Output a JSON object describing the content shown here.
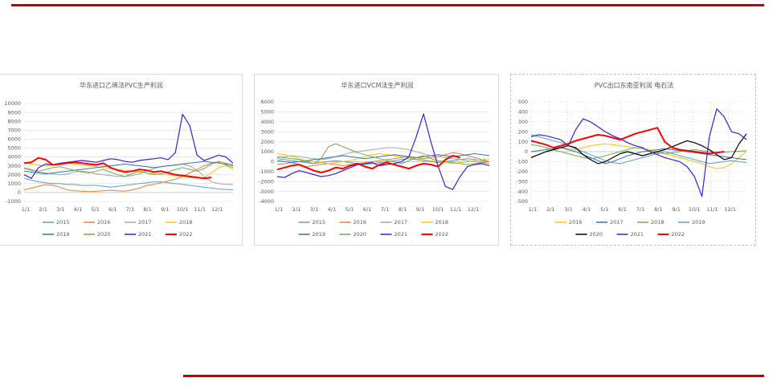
{
  "chart_data": [
    {
      "type": "line",
      "title": "华东进口乙烯法PVC生产利润",
      "xlabel": "",
      "ylabel": "",
      "x_ticks": [
        "1/1",
        "2/1",
        "3/1",
        "4/1",
        "5/1",
        "6/1",
        "7/1",
        "8/1",
        "9/1",
        "10/1",
        "11/1",
        "12/1"
      ],
      "y_ticks": [
        "-1000",
        "0",
        "1000",
        "2000",
        "3000",
        "4000",
        "5000",
        "6000",
        "7000",
        "8000",
        "9000",
        "10000"
      ],
      "ylim": [
        -1000,
        10000
      ],
      "grid": true,
      "legend_placement": "bottom",
      "series": [
        {
          "name": "2015",
          "color": "#5b9bd5",
          "width": 1,
          "values": [
            1600,
            1400,
            1200,
            1100,
            1000,
            1000,
            900,
            900,
            800,
            800,
            800,
            700,
            600,
            700,
            800,
            900,
            1000,
            1100,
            1200,
            1200,
            1100,
            1000,
            900,
            800,
            700,
            600,
            500,
            400,
            350,
            300
          ]
        },
        {
          "name": "2016",
          "color": "#ed7d31",
          "width": 1,
          "values": [
            300,
            500,
            700,
            900,
            800,
            600,
            300,
            200,
            150,
            100,
            150,
            200,
            250,
            200,
            150,
            300,
            500,
            800,
            900,
            1100,
            1300,
            1500,
            1800,
            2200,
            2600,
            3000,
            3300,
            3500,
            3300,
            3000
          ]
        },
        {
          "name": "2017",
          "color": "#a5a5a5",
          "width": 1,
          "values": [
            2800,
            2600,
            2300,
            2200,
            2100,
            2000,
            2100,
            2300,
            2400,
            2300,
            2100,
            2000,
            1900,
            1800,
            1800,
            1900,
            2100,
            2400,
            2700,
            2900,
            3000,
            3100,
            3200,
            3000,
            2500,
            1800,
            1200,
            1000,
            900,
            900
          ]
        },
        {
          "name": "2018",
          "color": "#ffc000",
          "width": 1,
          "values": [
            3300,
            3200,
            3100,
            3000,
            3100,
            3200,
            3300,
            3200,
            3100,
            3000,
            2900,
            2800,
            2700,
            2600,
            2500,
            2400,
            2300,
            2200,
            2100,
            2000,
            2000,
            1900,
            1800,
            1700,
            1600,
            1700,
            2200,
            2800,
            3000,
            2600
          ]
        },
        {
          "name": "2019",
          "color": "#2e75b6",
          "width": 1,
          "values": [
            2400,
            2300,
            2200,
            2100,
            2200,
            2300,
            2400,
            2500,
            2600,
            2700,
            2800,
            2900,
            3000,
            3100,
            3200,
            3100,
            3000,
            2900,
            2800,
            2900,
            3000,
            3100,
            3200,
            3300,
            3400,
            3500,
            3400,
            3300,
            3200,
            3100
          ]
        },
        {
          "name": "2020",
          "color": "#70ad47",
          "width": 1,
          "values": [
            2700,
            2500,
            2400,
            2600,
            2800,
            2900,
            2700,
            2500,
            2300,
            2200,
            2400,
            2600,
            2300,
            2000,
            1800,
            2100,
            2400,
            2200,
            2000,
            2100,
            2300,
            2600,
            2800,
            2600,
            2400,
            2700,
            3200,
            3400,
            3100,
            2800
          ]
        },
        {
          "name": "2021",
          "color": "#3f1ed6",
          "width": 1.2,
          "values": [
            2000,
            1600,
            2800,
            3200,
            3100,
            3300,
            3400,
            3500,
            3600,
            3500,
            3400,
            3600,
            3800,
            3700,
            3500,
            3400,
            3600,
            3700,
            3800,
            3900,
            3700,
            4500,
            8800,
            7500,
            4200,
            3600,
            3900,
            4200,
            4000,
            3300
          ]
        },
        {
          "name": "2022",
          "color": "#ff0000",
          "width": 2,
          "values": [
            3300,
            3400,
            3900,
            3700,
            3100,
            3200,
            3300,
            3400,
            3300,
            3200,
            3100,
            3300,
            2800,
            2500,
            2300,
            2400,
            2600,
            2500,
            2300,
            2400,
            2200,
            2000,
            1900,
            1800,
            1700,
            1600,
            1700,
            null,
            null,
            null
          ]
        }
      ]
    },
    {
      "type": "line",
      "title": "华东进口VCM法生产利润",
      "xlabel": "",
      "ylabel": "",
      "x_ticks": [
        "1/1",
        "2/1",
        "3/1",
        "4/1",
        "5/1",
        "6/1",
        "7/1",
        "8/1",
        "9/1",
        "10/1",
        "11/1",
        "12/1"
      ],
      "y_ticks": [
        "-4000",
        "-3000",
        "-2000",
        "-1000",
        "0",
        "1000",
        "2000",
        "3000",
        "4000",
        "5000",
        "6000"
      ],
      "ylim": [
        -4000,
        6000
      ],
      "grid": true,
      "legend_placement": "bottom",
      "series": [
        {
          "name": "2015",
          "color": "#5b9bd5",
          "width": 1,
          "values": [
            300,
            200,
            100,
            0,
            -100,
            -200,
            -100,
            0,
            100,
            0,
            -100,
            -200,
            -300,
            -200,
            -100,
            0,
            100,
            200,
            300,
            200,
            100,
            0,
            -100,
            0,
            100,
            200,
            300,
            200,
            100,
            0
          ]
        },
        {
          "name": "2016",
          "color": "#ed7d31",
          "width": 1,
          "values": [
            -300,
            -200,
            -100,
            -300,
            -500,
            -400,
            -300,
            -200,
            -300,
            -400,
            -300,
            -200,
            -100,
            0,
            100,
            200,
            300,
            400,
            500,
            400,
            300,
            400,
            500,
            700,
            900,
            800,
            600,
            400,
            200,
            0
          ]
        },
        {
          "name": "2017",
          "color": "#a5a5a5",
          "width": 1,
          "values": [
            400,
            500,
            600,
            500,
            400,
            300,
            200,
            300,
            500,
            700,
            900,
            1000,
            1100,
            1200,
            1300,
            1400,
            1400,
            1300,
            1200,
            1000,
            800,
            600,
            500,
            400,
            300,
            200,
            100,
            0,
            -100,
            -200
          ]
        },
        {
          "name": "2018",
          "color": "#ffc000",
          "width": 1,
          "values": [
            800,
            700,
            500,
            300,
            100,
            0,
            -100,
            -200,
            -100,
            0,
            100,
            300,
            500,
            700,
            800,
            700,
            600,
            500,
            400,
            300,
            200,
            100,
            0,
            -100,
            -200,
            -100,
            0,
            100,
            200,
            300
          ]
        },
        {
          "name": "2019",
          "color": "#2e75b6",
          "width": 1,
          "values": [
            100,
            0,
            -100,
            0,
            100,
            200,
            300,
            400,
            500,
            600,
            500,
            400,
            300,
            400,
            500,
            600,
            700,
            600,
            500,
            400,
            500,
            600,
            700,
            600,
            500,
            600,
            700,
            800,
            700,
            600
          ]
        },
        {
          "name": "2020",
          "color": "#70ad47",
          "width": 1,
          "values": [
            500,
            400,
            300,
            200,
            0,
            -200,
            300,
            1500,
            1800,
            1500,
            1200,
            900,
            700,
            500,
            300,
            100,
            0,
            -200,
            100,
            400,
            600,
            300,
            100,
            0,
            -100,
            -200,
            -300,
            -200,
            -100,
            0
          ]
        },
        {
          "name": "2021",
          "color": "#3f1ed6",
          "width": 1.2,
          "values": [
            -1500,
            -1600,
            -1200,
            -900,
            -1100,
            -1300,
            -1500,
            -1400,
            -1200,
            -900,
            -600,
            -300,
            -200,
            -100,
            -400,
            -300,
            -200,
            0,
            500,
            2500,
            4800,
            2000,
            -500,
            -2500,
            -2800,
            -1500,
            -500,
            -300,
            -200,
            -400
          ]
        },
        {
          "name": "2022",
          "color": "#ff0000",
          "width": 2,
          "values": [
            -800,
            -600,
            -400,
            -300,
            -600,
            -900,
            -1100,
            -900,
            -600,
            -700,
            -400,
            -200,
            -500,
            -700,
            -300,
            -100,
            -300,
            -500,
            -700,
            -400,
            -200,
            -300,
            -500,
            200,
            600,
            400,
            null,
            null,
            null,
            null
          ]
        }
      ]
    },
    {
      "type": "line",
      "title": "PVC出口东南亚利润 电石法",
      "xlabel": "",
      "ylabel": "",
      "x_ticks": [
        "1/1",
        "2/1",
        "3/1",
        "4/1",
        "5/1",
        "6/1",
        "7/1",
        "8/1",
        "9/1",
        "10/1",
        "11/1",
        "12/1"
      ],
      "y_ticks": [
        "-500",
        "-400",
        "-300",
        "-200",
        "-100",
        "0",
        "100",
        "200",
        "300",
        "400",
        "500"
      ],
      "ylim": [
        -500,
        500
      ],
      "grid": true,
      "legend_placement": "bottom",
      "series": [
        {
          "name": "2016",
          "color": "#ffc000",
          "width": 1,
          "values": [
            -50,
            -30,
            0,
            20,
            40,
            30,
            20,
            40,
            60,
            70,
            80,
            70,
            60,
            50,
            40,
            30,
            20,
            0,
            -20,
            -40,
            -60,
            -80,
            -100,
            -120,
            -150,
            -170,
            -160,
            -120,
            -60,
            0
          ]
        },
        {
          "name": "2017",
          "color": "#2e75b6",
          "width": 1,
          "values": [
            0,
            10,
            20,
            30,
            40,
            20,
            0,
            -30,
            -60,
            -90,
            -120,
            -100,
            -70,
            -40,
            -20,
            0,
            10,
            20,
            30,
            20,
            10,
            0,
            -10,
            -20,
            -30,
            -40,
            -50,
            -60,
            -70,
            -80
          ]
        },
        {
          "name": "2018",
          "color": "#70ad47",
          "width": 1,
          "values": [
            70,
            60,
            40,
            20,
            0,
            -20,
            -40,
            -60,
            -70,
            -60,
            -40,
            -20,
            0,
            20,
            40,
            30,
            10,
            -10,
            -20,
            -10,
            0,
            10,
            20,
            10,
            0,
            -10,
            -5,
            0,
            5,
            10
          ]
        },
        {
          "name": "2019",
          "color": "#5b9bd5",
          "width": 1,
          "values": [
            170,
            150,
            130,
            110,
            90,
            60,
            30,
            0,
            -30,
            -60,
            -90,
            -110,
            -120,
            -100,
            -80,
            -60,
            -40,
            -20,
            0,
            -20,
            -40,
            -60,
            -80,
            -100,
            -120,
            -110,
            -100,
            -90,
            -100,
            -110
          ]
        },
        {
          "name": "2020",
          "color": "#000000",
          "width": 1.2,
          "values": [
            -60,
            -30,
            0,
            20,
            40,
            60,
            40,
            -30,
            -80,
            -120,
            -100,
            -60,
            -20,
            0,
            -20,
            -40,
            -20,
            0,
            20,
            50,
            80,
            110,
            90,
            60,
            20,
            -30,
            -80,
            -60,
            80,
            180
          ]
        },
        {
          "name": "2021",
          "color": "#3f1ed6",
          "width": 1.2,
          "values": [
            150,
            170,
            160,
            140,
            120,
            60,
            220,
            330,
            300,
            250,
            200,
            160,
            130,
            90,
            60,
            40,
            0,
            -30,
            -60,
            -80,
            -100,
            -150,
            -250,
            -450,
            150,
            430,
            350,
            200,
            180,
            120
          ]
        },
        {
          "name": "2022",
          "color": "#ff0000",
          "width": 2,
          "values": [
            110,
            90,
            70,
            40,
            60,
            80,
            110,
            130,
            150,
            170,
            160,
            140,
            120,
            150,
            180,
            200,
            220,
            240,
            100,
            40,
            20,
            10,
            0,
            -10,
            -20,
            -10,
            0,
            null,
            null,
            null
          ]
        }
      ]
    }
  ]
}
